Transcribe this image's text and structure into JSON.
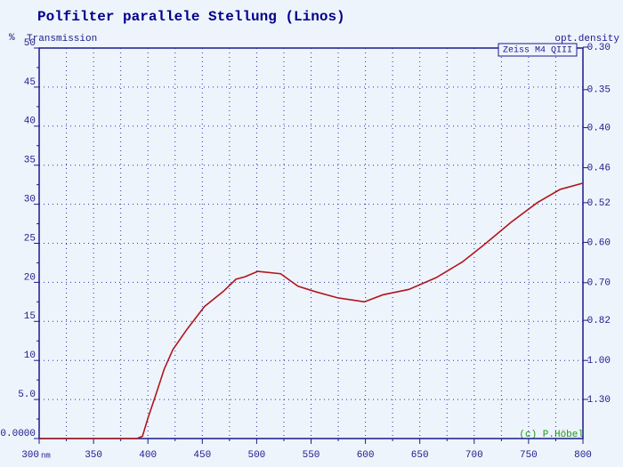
{
  "chart_data": {
    "type": "line",
    "title": "Polfilter parallele Stellung (Linos)",
    "y_unit": "%",
    "y_label": "Transmission",
    "y2_label": "opt.density",
    "x_unit": "nm",
    "copyright": "(c) P.Höbel",
    "x": [
      300,
      350,
      390,
      395,
      400,
      407,
      415,
      423,
      436,
      452,
      469,
      481,
      489,
      501,
      522,
      538,
      554,
      575,
      599,
      616,
      640,
      665,
      689,
      709,
      734,
      758,
      779,
      800
    ],
    "series": [
      {
        "name": "Zeiss M4 QIII",
        "color": "#b0161e",
        "values": [
          0,
          0,
          0,
          0.3,
          2.6,
          5.5,
          8.9,
          11.4,
          14,
          16.9,
          18.8,
          20.4,
          20.7,
          21.4,
          21.1,
          19.5,
          18.8,
          18,
          17.5,
          18.4,
          19.1,
          20.6,
          22.6,
          24.8,
          27.7,
          30.2,
          31.9,
          32.7
        ]
      }
    ],
    "xlim": [
      300,
      800
    ],
    "xticks": [
      300,
      350,
      400,
      450,
      500,
      550,
      600,
      650,
      700,
      750,
      800
    ],
    "ylim": [
      0,
      50
    ],
    "yticks": [
      {
        "value": 0,
        "label": "0.0000"
      },
      {
        "value": 5,
        "label": "5.0"
      },
      10,
      15,
      20,
      25,
      30,
      35,
      40,
      45,
      50
    ],
    "y2scale": "optical-density",
    "y2ticks": [
      {
        "value": 1.3,
        "label": "1.30"
      },
      {
        "value": 1.0,
        "label": "1.00"
      },
      {
        "value": 0.82,
        "label": "0.82"
      },
      {
        "value": 0.7,
        "label": "0.70"
      },
      {
        "value": 0.6,
        "label": "0.60"
      },
      {
        "value": 0.52,
        "label": "0.52"
      },
      {
        "value": 0.46,
        "label": "0.46"
      },
      {
        "value": 0.4,
        "label": "0.40"
      },
      {
        "value": 0.35,
        "label": "0.35"
      },
      {
        "value": 0.3,
        "label": "0.30"
      }
    ],
    "grid": true
  }
}
